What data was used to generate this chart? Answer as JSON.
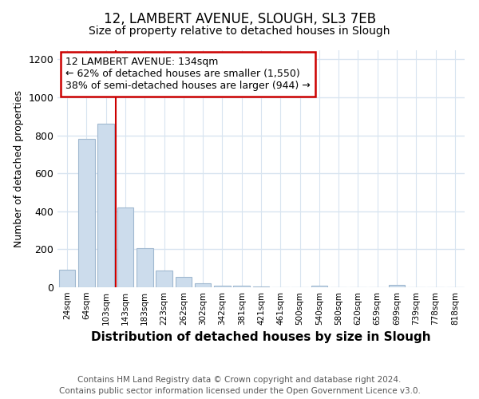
{
  "title": "12, LAMBERT AVENUE, SLOUGH, SL3 7EB",
  "subtitle": "Size of property relative to detached houses in Slough",
  "xlabel": "Distribution of detached houses by size in Slough",
  "ylabel": "Number of detached properties",
  "bins": [
    "24sqm",
    "64sqm",
    "103sqm",
    "143sqm",
    "183sqm",
    "223sqm",
    "262sqm",
    "302sqm",
    "342sqm",
    "381sqm",
    "421sqm",
    "461sqm",
    "500sqm",
    "540sqm",
    "580sqm",
    "620sqm",
    "659sqm",
    "699sqm",
    "739sqm",
    "778sqm",
    "818sqm"
  ],
  "values": [
    92,
    782,
    862,
    420,
    205,
    88,
    55,
    23,
    10,
    8,
    5,
    2,
    0,
    8,
    0,
    0,
    0,
    14,
    0,
    0,
    0
  ],
  "bar_color": "#ccdcec",
  "bar_edge_color": "#a0b8d0",
  "marker_bin_index": 3,
  "marker_color": "#cc0000",
  "ylim": [
    0,
    1250
  ],
  "yticks": [
    0,
    200,
    400,
    600,
    800,
    1000,
    1200
  ],
  "annotation_text": "12 LAMBERT AVENUE: 134sqm\n← 62% of detached houses are smaller (1,550)\n38% of semi-detached houses are larger (944) →",
  "annotation_box_color": "#ffffff",
  "annotation_box_edge": "#cc0000",
  "footer_line1": "Contains HM Land Registry data © Crown copyright and database right 2024.",
  "footer_line2": "Contains public sector information licensed under the Open Government Licence v3.0.",
  "background_color": "#ffffff",
  "plot_bg_color": "#ffffff",
  "grid_color": "#d8e4f0",
  "title_fontsize": 12,
  "subtitle_fontsize": 10,
  "xlabel_fontsize": 11,
  "ylabel_fontsize": 9,
  "footer_fontsize": 7.5,
  "annotation_fontsize": 9
}
